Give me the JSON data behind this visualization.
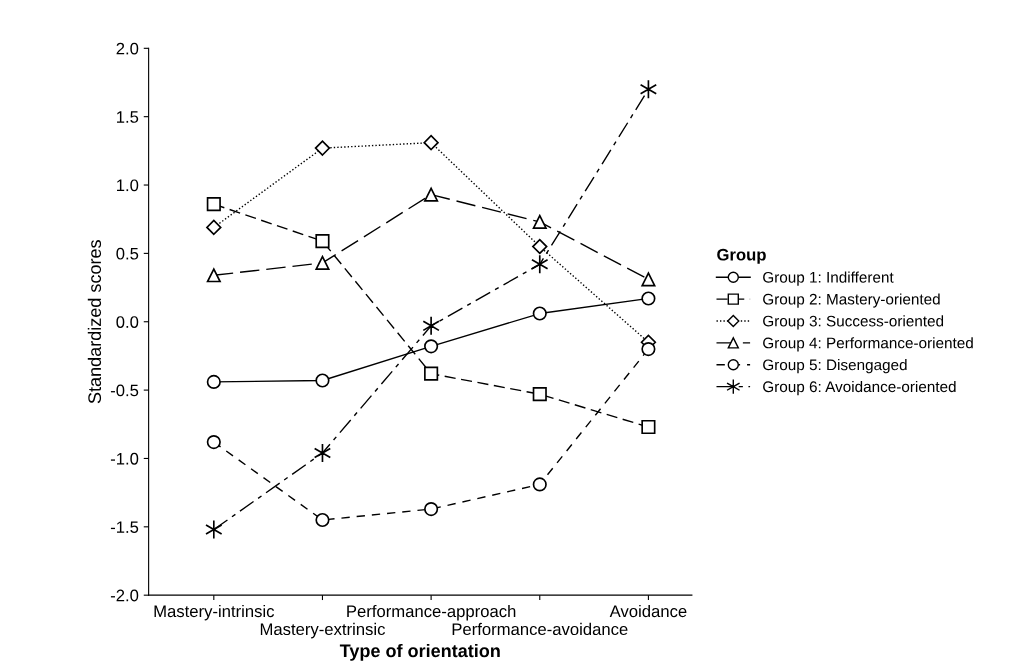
{
  "chart_data": {
    "type": "line",
    "xlabel": "Type of orientation",
    "ylabel": "Standardized scores",
    "legend_title": "Group",
    "legend": "right",
    "grid": false,
    "categories": [
      "Mastery-intrinsic",
      "Mastery-extrinsic",
      "Performance-approach",
      "Performance-avoidance",
      "Avoidance"
    ],
    "ylim": [
      -2.0,
      2.0
    ],
    "yticks": [
      {
        "value": -2,
        "label": "-2.0"
      },
      {
        "value": -1.5,
        "label": "-1.5"
      },
      {
        "value": -1,
        "label": "-1.0"
      },
      {
        "value": -0.5,
        "label": "-0.5"
      },
      {
        "value": 0,
        "label": "0.0"
      },
      {
        "value": 0.5,
        "label": "0.5"
      },
      {
        "value": 1,
        "label": "1.0"
      },
      {
        "value": 1.5,
        "label": "1.5"
      },
      {
        "value": 2,
        "label": "2.0"
      }
    ],
    "series": [
      {
        "name": "Group 1: Indifferent",
        "color": "#000000",
        "marker": "circle",
        "line_style": "solid",
        "values": [
          -0.44,
          -0.43,
          -0.18,
          0.06,
          0.17
        ]
      },
      {
        "name": "Group 2: Mastery-oriented",
        "color": "#000000",
        "marker": "square",
        "line_style": "dashed",
        "values": [
          0.86,
          0.59,
          -0.38,
          -0.53,
          -0.77
        ]
      },
      {
        "name": "Group 3: Success-oriented",
        "color": "#000000",
        "marker": "diamond",
        "line_style": "dotted",
        "values": [
          0.69,
          1.27,
          1.31,
          0.55,
          -0.15
        ]
      },
      {
        "name": "Group 4: Performance-oriented",
        "color": "#000000",
        "marker": "triangle",
        "line_style": "dashed",
        "values": [
          0.34,
          0.43,
          0.93,
          0.73,
          0.31
        ]
      },
      {
        "name": "Group 5: Disengaged",
        "color": "#000000",
        "marker": "circle",
        "line_style": "dashed",
        "values": [
          -0.88,
          -1.45,
          -1.37,
          -1.19,
          -0.2
        ]
      },
      {
        "name": "Group 6: Avoidance-oriented",
        "color": "#000000",
        "marker": "cross",
        "line_style": "dashed",
        "values": [
          -1.52,
          -0.96,
          -0.03,
          0.42,
          1.7
        ]
      }
    ]
  }
}
